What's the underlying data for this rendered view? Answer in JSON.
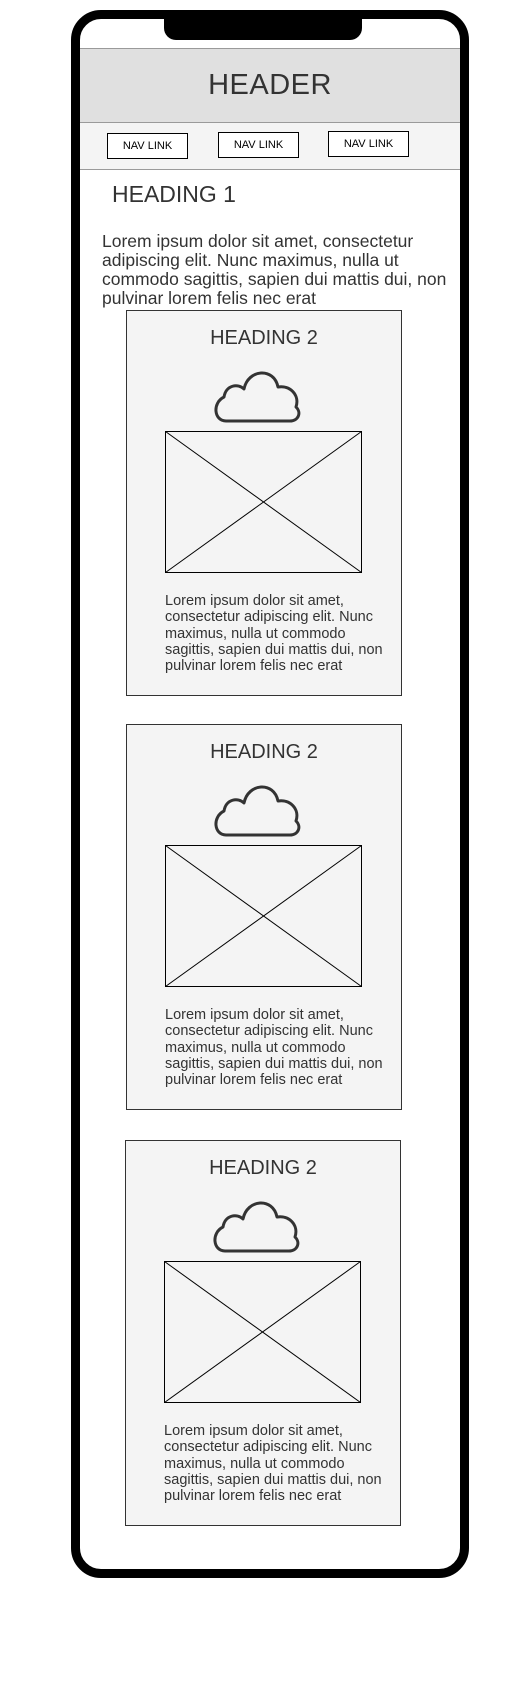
{
  "header": {
    "title": "HEADER"
  },
  "nav": {
    "links": [
      "NAV LINK",
      "NAV LINK",
      "NAV LINK"
    ]
  },
  "main": {
    "heading": "HEADING 1",
    "intro": "Lorem ipsum dolor sit amet, consectetur adipiscing elit. Nunc maximus, nulla ut commodo sagittis, sapien dui mattis dui, non pulvinar lorem felis nec erat"
  },
  "cards": [
    {
      "heading": "HEADING 2",
      "icon": "cloud-icon",
      "text": "Lorem ipsum dolor sit amet, consectetur adipiscing elit. Nunc maximus, nulla ut commodo sagittis, sapien dui mattis dui, non pulvinar lorem felis nec erat"
    },
    {
      "heading": "HEADING 2",
      "icon": "cloud-icon",
      "text": "Lorem ipsum dolor sit amet, consectetur adipiscing elit. Nunc maximus, nulla ut commodo sagittis, sapien dui mattis dui, non pulvinar lorem felis nec erat"
    },
    {
      "heading": "HEADING 2",
      "icon": "cloud-icon",
      "text": "Lorem ipsum dolor sit amet, consectetur adipiscing elit. Nunc maximus, nulla ut commodo sagittis, sapien dui mattis dui, non pulvinar lorem felis nec erat"
    }
  ],
  "colors": {
    "frame": "#000000",
    "header_bg": "#e0e0e0",
    "nav_bg": "#f4f4f4",
    "card_bg": "#f4f4f4",
    "text": "#333333"
  }
}
